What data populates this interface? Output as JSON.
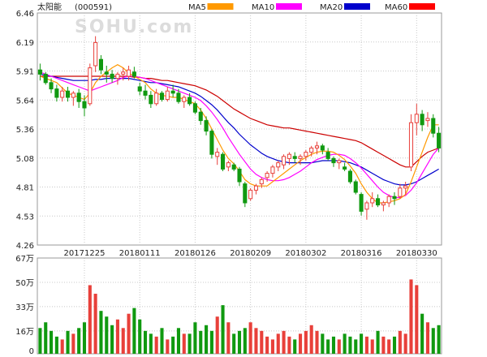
{
  "header": {
    "stock_name": "太阳能",
    "stock_code": "(000591)",
    "watermark": "SOHU.com"
  },
  "legend": [
    {
      "label": "MA5",
      "color": "#ff9900"
    },
    {
      "label": "MA10",
      "color": "#ff00ff"
    },
    {
      "label": "MA20",
      "color": "#0000cc"
    },
    {
      "label": "MA60",
      "color": "#ff0000"
    }
  ],
  "colors": {
    "up": "#e8403a",
    "down": "#109910",
    "ma5": "#ff9900",
    "ma10": "#ff00ff",
    "ma20": "#0000cc",
    "ma60": "#cc0000"
  },
  "chart_data": [
    {
      "type": "candlestick",
      "title": "太阳能 (000591)",
      "y_ticks": [
        "6.46",
        "6.19",
        "5.91",
        "5.64",
        "5.36",
        "5.08",
        "4.81",
        "4.53",
        "4.26"
      ],
      "ylim": [
        4.26,
        6.46
      ],
      "x_tick_labels": [
        {
          "index": 8,
          "label": "20171225"
        },
        {
          "index": 18,
          "label": "20180111"
        },
        {
          "index": 28,
          "label": "20180126"
        },
        {
          "index": 38,
          "label": "20180209"
        },
        {
          "index": 48,
          "label": "20180302"
        },
        {
          "index": 58,
          "label": "20180316"
        },
        {
          "index": 68,
          "label": "20180330"
        }
      ],
      "ohlc": [
        [
          5.92,
          5.98,
          5.82,
          5.88
        ],
        [
          5.88,
          5.9,
          5.78,
          5.8
        ],
        [
          5.8,
          5.84,
          5.7,
          5.74
        ],
        [
          5.74,
          5.78,
          5.62,
          5.66
        ],
        [
          5.66,
          5.76,
          5.62,
          5.72
        ],
        [
          5.72,
          5.76,
          5.62,
          5.66
        ],
        [
          5.66,
          5.72,
          5.58,
          5.7
        ],
        [
          5.7,
          5.74,
          5.56,
          5.62
        ],
        [
          5.62,
          5.68,
          5.48,
          5.56
        ],
        [
          5.6,
          5.98,
          5.58,
          5.94
        ],
        [
          5.96,
          6.24,
          5.9,
          6.18
        ],
        [
          6.02,
          6.06,
          5.88,
          5.92
        ],
        [
          5.9,
          5.96,
          5.8,
          5.88
        ],
        [
          5.88,
          5.92,
          5.8,
          5.84
        ],
        [
          5.84,
          5.9,
          5.78,
          5.88
        ],
        [
          5.88,
          5.94,
          5.82,
          5.9
        ],
        [
          5.86,
          5.96,
          5.82,
          5.92
        ],
        [
          5.9,
          5.95,
          5.84,
          5.86
        ],
        [
          5.76,
          5.8,
          5.68,
          5.72
        ],
        [
          5.72,
          5.78,
          5.64,
          5.68
        ],
        [
          5.68,
          5.72,
          5.56,
          5.6
        ],
        [
          5.6,
          5.74,
          5.58,
          5.7
        ],
        [
          5.7,
          5.72,
          5.62,
          5.64
        ],
        [
          5.64,
          5.76,
          5.62,
          5.72
        ],
        [
          5.72,
          5.78,
          5.66,
          5.7
        ],
        [
          5.7,
          5.74,
          5.6,
          5.62
        ],
        [
          5.62,
          5.68,
          5.56,
          5.66
        ],
        [
          5.66,
          5.7,
          5.58,
          5.6
        ],
        [
          5.6,
          5.62,
          5.5,
          5.52
        ],
        [
          5.52,
          5.56,
          5.4,
          5.44
        ],
        [
          5.44,
          5.48,
          5.3,
          5.34
        ],
        [
          5.34,
          5.36,
          5.08,
          5.12
        ],
        [
          5.1,
          5.18,
          5.02,
          5.14
        ],
        [
          5.12,
          5.14,
          4.96,
          4.98
        ],
        [
          5.0,
          5.06,
          4.96,
          5.04
        ],
        [
          5.02,
          5.04,
          4.96,
          4.98
        ],
        [
          4.98,
          5.0,
          4.82,
          4.86
        ],
        [
          4.84,
          4.86,
          4.62,
          4.66
        ],
        [
          4.7,
          4.8,
          4.68,
          4.78
        ],
        [
          4.78,
          4.84,
          4.74,
          4.82
        ],
        [
          4.84,
          4.9,
          4.8,
          4.88
        ],
        [
          4.9,
          4.96,
          4.86,
          4.94
        ],
        [
          4.94,
          5.02,
          4.9,
          5.0
        ],
        [
          5.0,
          5.06,
          4.96,
          5.04
        ],
        [
          5.02,
          5.12,
          4.98,
          5.1
        ],
        [
          5.08,
          5.14,
          5.02,
          5.12
        ],
        [
          5.1,
          5.14,
          5.04,
          5.08
        ],
        [
          5.08,
          5.12,
          5.02,
          5.1
        ],
        [
          5.1,
          5.16,
          5.06,
          5.14
        ],
        [
          5.14,
          5.2,
          5.1,
          5.18
        ],
        [
          5.18,
          5.24,
          5.12,
          5.2
        ],
        [
          5.2,
          5.22,
          5.12,
          5.16
        ],
        [
          5.14,
          5.18,
          5.06,
          5.08
        ],
        [
          5.08,
          5.1,
          5.0,
          5.04
        ],
        [
          5.04,
          5.08,
          4.98,
          5.06
        ],
        [
          5.0,
          5.04,
          4.96,
          4.98
        ],
        [
          4.96,
          4.98,
          4.84,
          4.86
        ],
        [
          4.86,
          4.88,
          4.74,
          4.76
        ],
        [
          4.74,
          4.76,
          4.54,
          4.58
        ],
        [
          4.6,
          4.68,
          4.5,
          4.66
        ],
        [
          4.66,
          4.76,
          4.62,
          4.7
        ],
        [
          4.7,
          4.74,
          4.62,
          4.64
        ],
        [
          4.64,
          4.68,
          4.58,
          4.66
        ],
        [
          4.66,
          4.74,
          4.62,
          4.72
        ],
        [
          4.72,
          4.76,
          4.64,
          4.7
        ],
        [
          4.72,
          4.84,
          4.7,
          4.8
        ],
        [
          4.8,
          4.86,
          4.74,
          4.82
        ],
        [
          5.0,
          5.5,
          4.96,
          5.42
        ],
        [
          5.42,
          5.6,
          5.3,
          5.5
        ],
        [
          5.5,
          5.54,
          5.34,
          5.4
        ],
        [
          5.44,
          5.52,
          5.38,
          5.46
        ],
        [
          5.46,
          5.5,
          5.28,
          5.32
        ],
        [
          5.32,
          5.38,
          5.14,
          5.18
        ]
      ],
      "ma5": [
        5.86,
        5.84,
        5.82,
        5.8,
        5.75,
        5.7,
        5.68,
        5.66,
        5.64,
        5.7,
        5.8,
        5.86,
        5.9,
        5.94,
        5.97,
        5.94,
        5.89,
        5.86,
        5.83,
        5.8,
        5.74,
        5.7,
        5.68,
        5.67,
        5.66,
        5.66,
        5.64,
        5.62,
        5.6,
        5.54,
        5.46,
        5.36,
        5.26,
        5.16,
        5.08,
        5.03,
        4.96,
        4.88,
        4.84,
        4.82,
        4.82,
        4.82,
        4.86,
        4.9,
        4.94,
        4.98,
        5.02,
        5.06,
        5.09,
        5.12,
        5.14,
        5.15,
        5.15,
        5.14,
        5.11,
        5.07,
        5.01,
        4.94,
        4.84,
        4.76,
        4.7,
        4.66,
        4.66,
        4.67,
        4.68,
        4.7,
        4.74,
        4.86,
        5.0,
        5.14,
        5.28,
        5.4,
        5.4
      ],
      "ma10": [
        5.9,
        5.88,
        5.86,
        5.84,
        5.82,
        5.8,
        5.78,
        5.76,
        5.74,
        5.72,
        5.74,
        5.76,
        5.78,
        5.8,
        5.82,
        5.85,
        5.86,
        5.86,
        5.85,
        5.84,
        5.82,
        5.8,
        5.78,
        5.76,
        5.74,
        5.72,
        5.7,
        5.68,
        5.66,
        5.63,
        5.58,
        5.52,
        5.45,
        5.37,
        5.28,
        5.2,
        5.12,
        5.05,
        4.98,
        4.93,
        4.9,
        4.88,
        4.87,
        4.87,
        4.88,
        4.9,
        4.93,
        4.96,
        5.0,
        5.04,
        5.07,
        5.09,
        5.11,
        5.12,
        5.12,
        5.11,
        5.08,
        5.04,
        4.99,
        4.93,
        4.87,
        4.81,
        4.76,
        4.73,
        4.71,
        4.71,
        4.73,
        4.78,
        4.85,
        4.94,
        5.03,
        5.12,
        5.18
      ],
      "ma20": [
        5.88,
        5.87,
        5.86,
        5.85,
        5.84,
        5.83,
        5.82,
        5.82,
        5.82,
        5.82,
        5.83,
        5.83,
        5.84,
        5.84,
        5.84,
        5.84,
        5.84,
        5.83,
        5.82,
        5.81,
        5.8,
        5.8,
        5.79,
        5.78,
        5.77,
        5.76,
        5.74,
        5.72,
        5.7,
        5.67,
        5.63,
        5.59,
        5.54,
        5.48,
        5.42,
        5.37,
        5.31,
        5.26,
        5.21,
        5.17,
        5.13,
        5.1,
        5.08,
        5.06,
        5.05,
        5.04,
        5.04,
        5.04,
        5.04,
        5.04,
        5.05,
        5.06,
        5.06,
        5.06,
        5.06,
        5.05,
        5.04,
        5.02,
        5.0,
        4.97,
        4.94,
        4.91,
        4.88,
        4.86,
        4.84,
        4.83,
        4.83,
        4.84,
        4.86,
        4.89,
        4.92,
        4.95,
        4.98
      ],
      "ma60": [
        5.86,
        5.86,
        5.86,
        5.86,
        5.86,
        5.86,
        5.86,
        5.86,
        5.86,
        5.86,
        5.86,
        5.86,
        5.86,
        5.86,
        5.86,
        5.86,
        5.86,
        5.85,
        5.85,
        5.84,
        5.84,
        5.83,
        5.82,
        5.82,
        5.81,
        5.8,
        5.79,
        5.78,
        5.77,
        5.75,
        5.73,
        5.7,
        5.67,
        5.63,
        5.59,
        5.55,
        5.52,
        5.49,
        5.46,
        5.44,
        5.42,
        5.4,
        5.39,
        5.38,
        5.37,
        5.37,
        5.36,
        5.35,
        5.34,
        5.33,
        5.32,
        5.31,
        5.3,
        5.29,
        5.28,
        5.27,
        5.26,
        5.25,
        5.23,
        5.2,
        5.17,
        5.14,
        5.11,
        5.08,
        5.05,
        5.02,
        5.0,
        5.0,
        5.05,
        5.1,
        5.14,
        5.16,
        5.18
      ]
    },
    {
      "type": "bar",
      "title": "",
      "y_ticks": [
        "67万",
        "50万",
        "33万",
        "16万",
        "0"
      ],
      "ylim": [
        0,
        67
      ],
      "unit": "万",
      "values": [
        18,
        22,
        16,
        12,
        10,
        16,
        14,
        18,
        22,
        48,
        42,
        30,
        26,
        20,
        24,
        18,
        28,
        32,
        24,
        16,
        14,
        12,
        18,
        10,
        12,
        18,
        14,
        14,
        22,
        16,
        20,
        16,
        26,
        34,
        22,
        14,
        16,
        18,
        22,
        18,
        16,
        12,
        10,
        14,
        16,
        12,
        10,
        14,
        16,
        20,
        16,
        14,
        10,
        12,
        10,
        14,
        12,
        10,
        14,
        12,
        10,
        16,
        12,
        10,
        12,
        16,
        14,
        52,
        48,
        28,
        22,
        18,
        20
      ]
    }
  ]
}
